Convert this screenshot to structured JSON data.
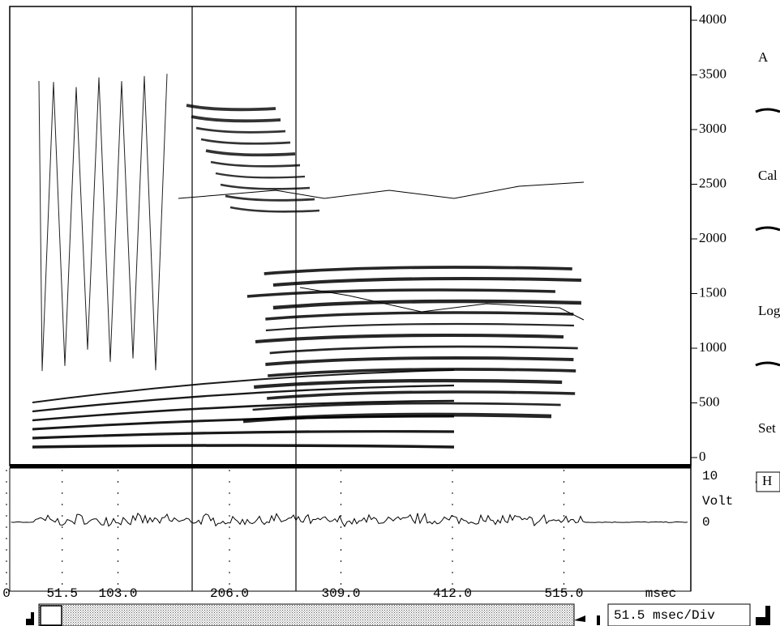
{
  "frequency_axis": {
    "ticks": [
      0,
      500,
      1000,
      1500,
      2000,
      2500,
      3000,
      3500,
      4000
    ]
  },
  "side_buttons": [
    "A",
    "Cal",
    "Log",
    "Set"
  ],
  "amplitude": {
    "button": "H",
    "max": 10,
    "unit": "Volt",
    "zero": 0
  },
  "time_axis": {
    "ticks": [
      0,
      51.5,
      {
        "value": 103,
        "label": "103.0"
      },
      {
        "value": 206,
        "label": "206.0"
      },
      {
        "value": 309,
        "label": "309.0"
      },
      {
        "value": 412,
        "label": "412.0"
      },
      {
        "value": 515,
        "label": "515.0"
      }
    ],
    "unit": "msec"
  },
  "scale": "51.5 msec/Div"
}
